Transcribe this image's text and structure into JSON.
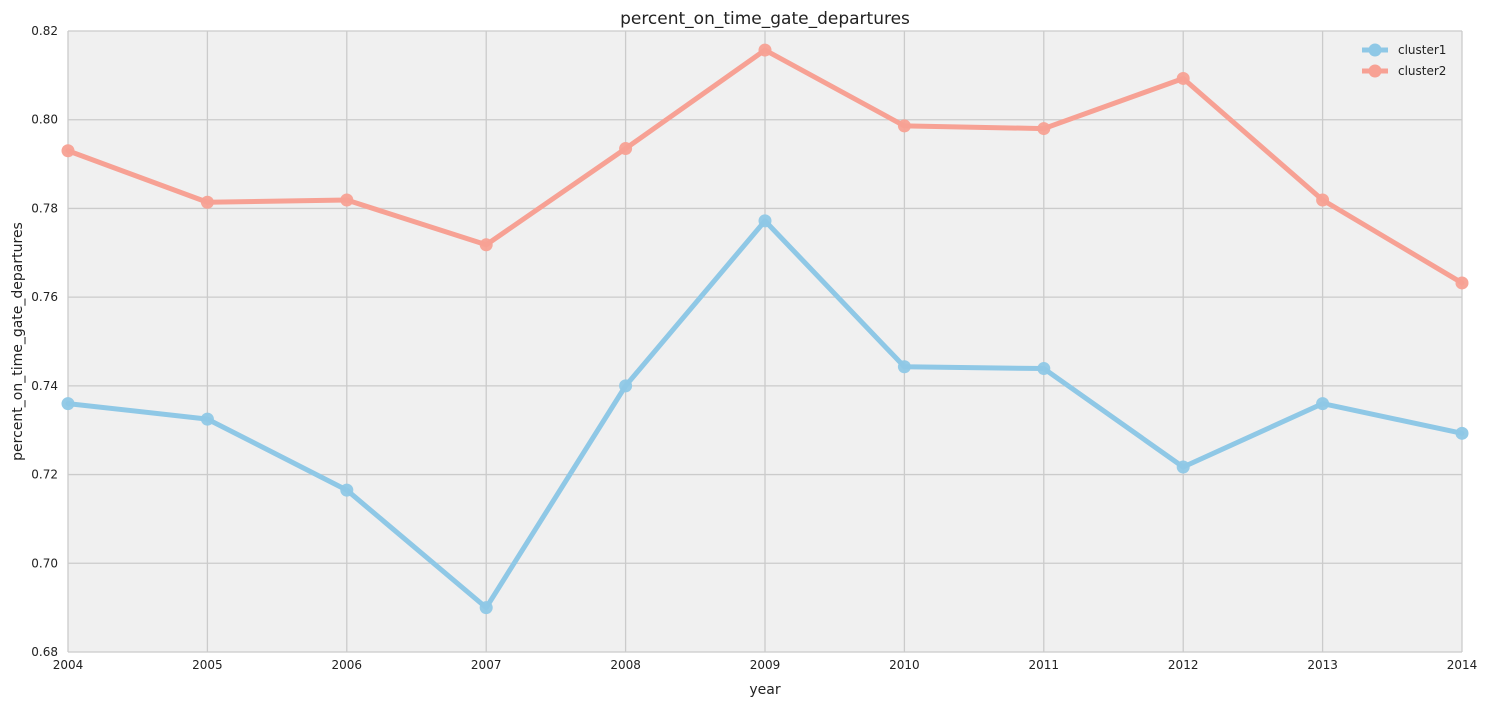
{
  "chart_data": {
    "type": "line",
    "title": "percent_on_time_gate_departures",
    "xlabel": "year",
    "ylabel": "percent_on_time_gate_departures",
    "x": [
      2004,
      2005,
      2006,
      2007,
      2008,
      2009,
      2010,
      2011,
      2012,
      2013,
      2014
    ],
    "xlim": [
      2004,
      2014
    ],
    "ylim": [
      0.68,
      0.82
    ],
    "x_ticks": [
      "2004",
      "2005",
      "2006",
      "2007",
      "2008",
      "2009",
      "2010",
      "2011",
      "2012",
      "2013",
      "2014"
    ],
    "y_ticks": [
      "0.68",
      "0.70",
      "0.72",
      "0.74",
      "0.76",
      "0.78",
      "0.80",
      "0.82"
    ],
    "grid": true,
    "legend_position": "top-right",
    "background_color": "#f0f0f0",
    "grid_color": "#cbcbcb",
    "series": [
      {
        "name": "cluster1",
        "color": "#8fc8e6",
        "values": [
          0.736,
          0.7325,
          0.7165,
          0.69,
          0.74,
          0.7772,
          0.7443,
          0.7439,
          0.7217,
          0.736,
          0.7293
        ]
      },
      {
        "name": "cluster2",
        "color": "#f7a194",
        "values": [
          0.793,
          0.7814,
          0.7819,
          0.7718,
          0.7935,
          0.8157,
          0.7986,
          0.798,
          0.8093,
          0.7819,
          0.7632
        ]
      }
    ]
  }
}
